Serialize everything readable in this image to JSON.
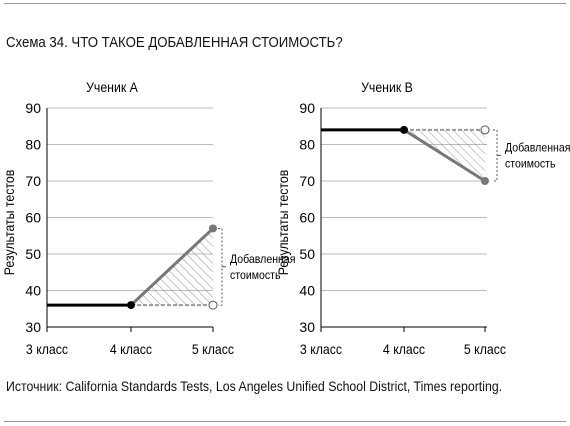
{
  "scheme_title": "Схема 34. ЧТО ТАКОЕ ДОБАВЛЕННАЯ СТОИМОСТЬ?",
  "source_note": "Источник: California Standards Tests, Los Angeles Unified School District, Times reporting.",
  "colors": {
    "actual_line": "#000000",
    "gain_line": "#777777",
    "projection_line": "#999999",
    "grid": "#bbbbbb",
    "hatch": "#888888"
  },
  "chart_data": [
    {
      "type": "line",
      "title": "Ученик А",
      "ylabel": "Результаты тестов",
      "xlabel": "",
      "categories": [
        "3 класс",
        "4 класс",
        "5 класс"
      ],
      "yticks": [
        30,
        40,
        50,
        60,
        70,
        80,
        90
      ],
      "ylim": [
        30,
        90
      ],
      "grid": true,
      "series": [
        {
          "role": "actual",
          "values": [
            36,
            36,
            57
          ]
        },
        {
          "role": "expected",
          "values": [
            null,
            36,
            36
          ]
        }
      ],
      "annotation": {
        "lines": [
          "Добавленная",
          "стоимость"
        ],
        "from": 36,
        "to": 57
      }
    },
    {
      "type": "line",
      "title": "Ученик В",
      "ylabel": "Результаты тестов",
      "xlabel": "",
      "categories": [
        "3 класс",
        "4 класс",
        "5 класс"
      ],
      "yticks": [
        30,
        40,
        50,
        60,
        70,
        80,
        90
      ],
      "ylim": [
        30,
        90
      ],
      "grid": true,
      "series": [
        {
          "role": "actual",
          "values": [
            84,
            84,
            70
          ]
        },
        {
          "role": "expected",
          "values": [
            null,
            84,
            84
          ]
        }
      ],
      "annotation": {
        "lines": [
          "Добавленная",
          "стоимость"
        ],
        "from": 84,
        "to": 70
      }
    }
  ]
}
